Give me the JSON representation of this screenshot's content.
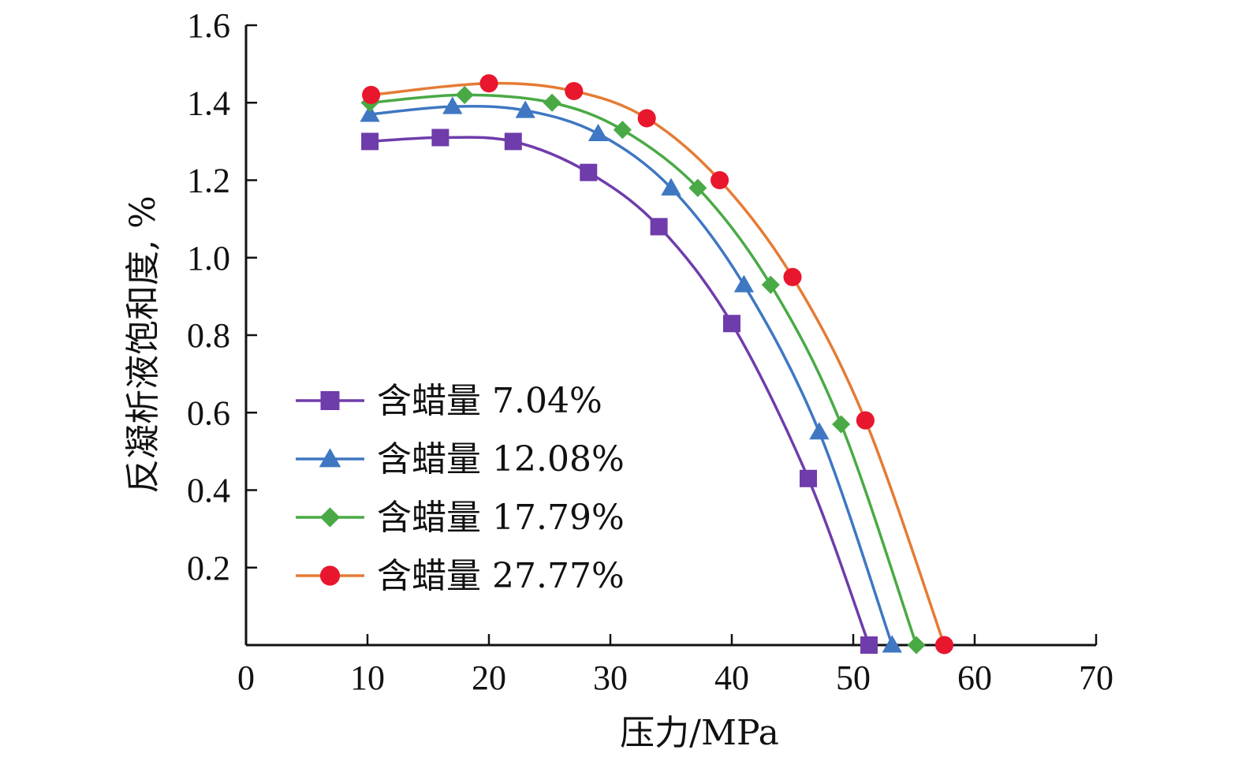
{
  "chart_data": {
    "type": "line",
    "xlabel": "压力/MPa",
    "ylabel": "反凝析液饱和度, %",
    "xlim": [
      0,
      70
    ],
    "ylim": [
      0,
      1.6
    ],
    "x_ticks": [
      0,
      10,
      20,
      30,
      40,
      50,
      60,
      70
    ],
    "y_ticks": [
      0.2,
      0.4,
      0.6,
      0.8,
      1.0,
      1.2,
      1.4,
      1.6
    ],
    "x_tick_labels": [
      "0",
      "10",
      "20",
      "30",
      "40",
      "50",
      "60",
      "70"
    ],
    "y_tick_labels": [
      "0.2",
      "0.4",
      "0.6",
      "0.8",
      "1.0",
      "1.2",
      "1.4",
      "1.6"
    ],
    "grid": false,
    "legend_position": "left",
    "series": [
      {
        "name": "含蜡量 7.04%",
        "color": "#6f3cab",
        "marker": "square",
        "points": [
          [
            10.2,
            1.3
          ],
          [
            16.0,
            1.31
          ],
          [
            22.0,
            1.3
          ],
          [
            28.2,
            1.22
          ],
          [
            34.0,
            1.08
          ],
          [
            40.0,
            0.83
          ],
          [
            46.3,
            0.43
          ],
          [
            51.3,
            0.0
          ]
        ]
      },
      {
        "name": "含蜡量 12.08%",
        "color": "#3f77c2",
        "marker": "triangle",
        "points": [
          [
            10.2,
            1.37
          ],
          [
            17.0,
            1.39
          ],
          [
            23.0,
            1.38
          ],
          [
            29.0,
            1.32
          ],
          [
            35.0,
            1.18
          ],
          [
            41.0,
            0.93
          ],
          [
            47.2,
            0.55
          ],
          [
            53.2,
            0.0
          ]
        ]
      },
      {
        "name": "含蜡量 17.79%",
        "color": "#49aa45",
        "marker": "diamond",
        "points": [
          [
            10.2,
            1.4
          ],
          [
            18.0,
            1.42
          ],
          [
            25.2,
            1.4
          ],
          [
            31.0,
            1.33
          ],
          [
            37.2,
            1.18
          ],
          [
            43.2,
            0.93
          ],
          [
            49.0,
            0.57
          ],
          [
            55.2,
            0.0
          ]
        ]
      },
      {
        "name": "含蜡量 27.77%",
        "color": "#e57b35",
        "marker_color": "#e8172e",
        "marker": "circle",
        "points": [
          [
            10.3,
            1.42
          ],
          [
            20.0,
            1.45
          ],
          [
            27.0,
            1.43
          ],
          [
            33.0,
            1.36
          ],
          [
            39.0,
            1.2
          ],
          [
            45.0,
            0.95
          ],
          [
            51.0,
            0.58
          ],
          [
            57.5,
            0.0
          ]
        ]
      }
    ]
  }
}
